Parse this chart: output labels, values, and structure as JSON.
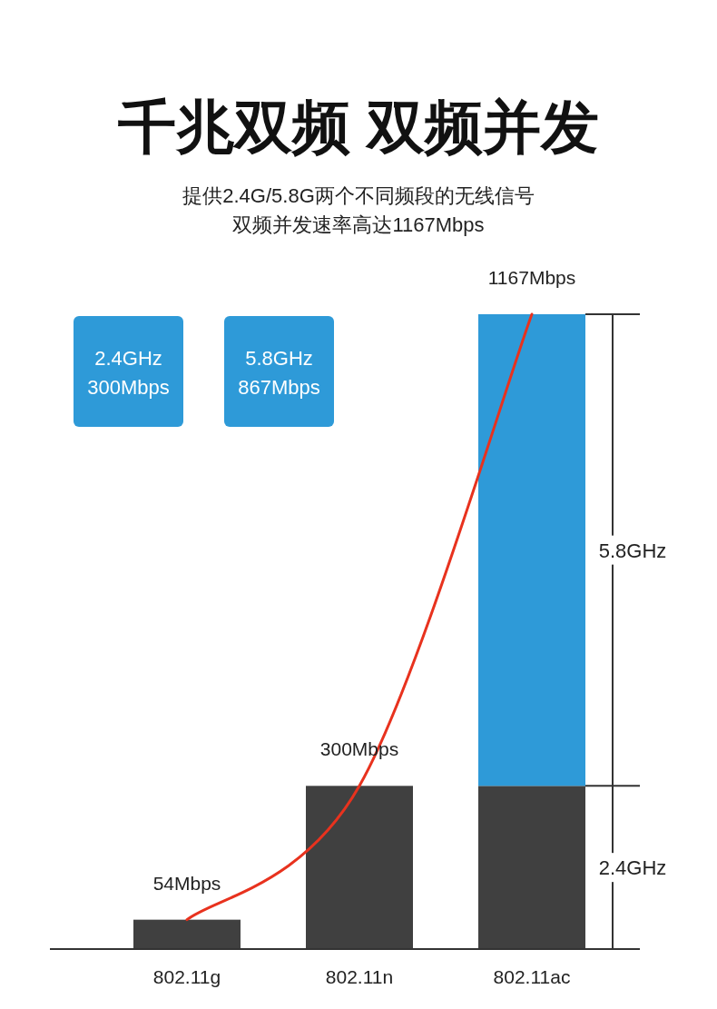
{
  "chart_data": {
    "type": "bar",
    "title": "千兆双频 双频并发",
    "subtitle": "提供2.4G/5.8G两个不同频段的无线信号",
    "categories": [
      "802.11g",
      "802.11n",
      "802.11ac"
    ],
    "stacked": true,
    "series": [
      {
        "name": "2.4GHz",
        "color": "#404040",
        "values": [
          54,
          300,
          300
        ]
      },
      {
        "name": "5.8GHz",
        "color": "#2e9ad8",
        "values": [
          null,
          null,
          867
        ]
      },
      {
        "type": "line",
        "color": "#e8321e",
        "values": [
          54,
          300,
          1167
        ],
        "value_labels": [
          "54Mbps",
          "300Mbps",
          "1167Mbps"
        ]
      }
    ],
    "annotations": [
      "双频并发速率高达1167Mbps",
      "2.4GHz\n300Mbps",
      "5.8GHz\n867Mbps"
    ]
  }
}
